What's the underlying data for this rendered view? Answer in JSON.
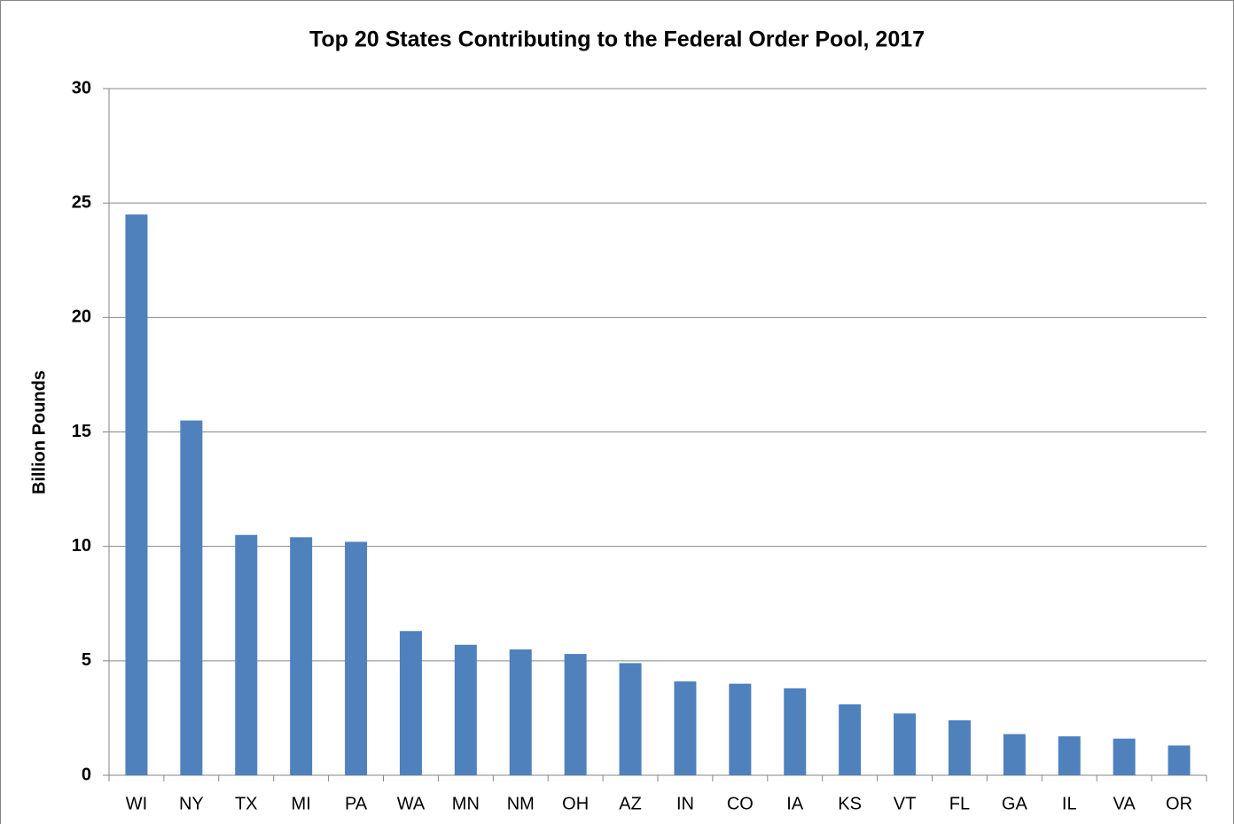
{
  "chart_data": {
    "type": "bar",
    "title": "Top 20 States Contributing to the Federal Order Pool, 2017",
    "y_label": "Billion Pounds",
    "categories": [
      "WI",
      "NY",
      "TX",
      "MI",
      "PA",
      "WA",
      "MN",
      "NM",
      "OH",
      "AZ",
      "IN",
      "CO",
      "IA",
      "KS",
      "VT",
      "FL",
      "GA",
      "IL",
      "VA",
      "OR"
    ],
    "values": [
      24.5,
      15.5,
      10.5,
      10.4,
      10.2,
      6.3,
      5.7,
      5.5,
      5.3,
      4.9,
      4.1,
      4.0,
      3.8,
      3.1,
      2.7,
      2.4,
      1.8,
      1.7,
      1.6,
      1.3
    ],
    "color": "#4f81bd",
    "ylim": [
      0,
      30
    ],
    "yticks": [
      0,
      5,
      10,
      15,
      20,
      25,
      30
    ],
    "grid": true
  }
}
